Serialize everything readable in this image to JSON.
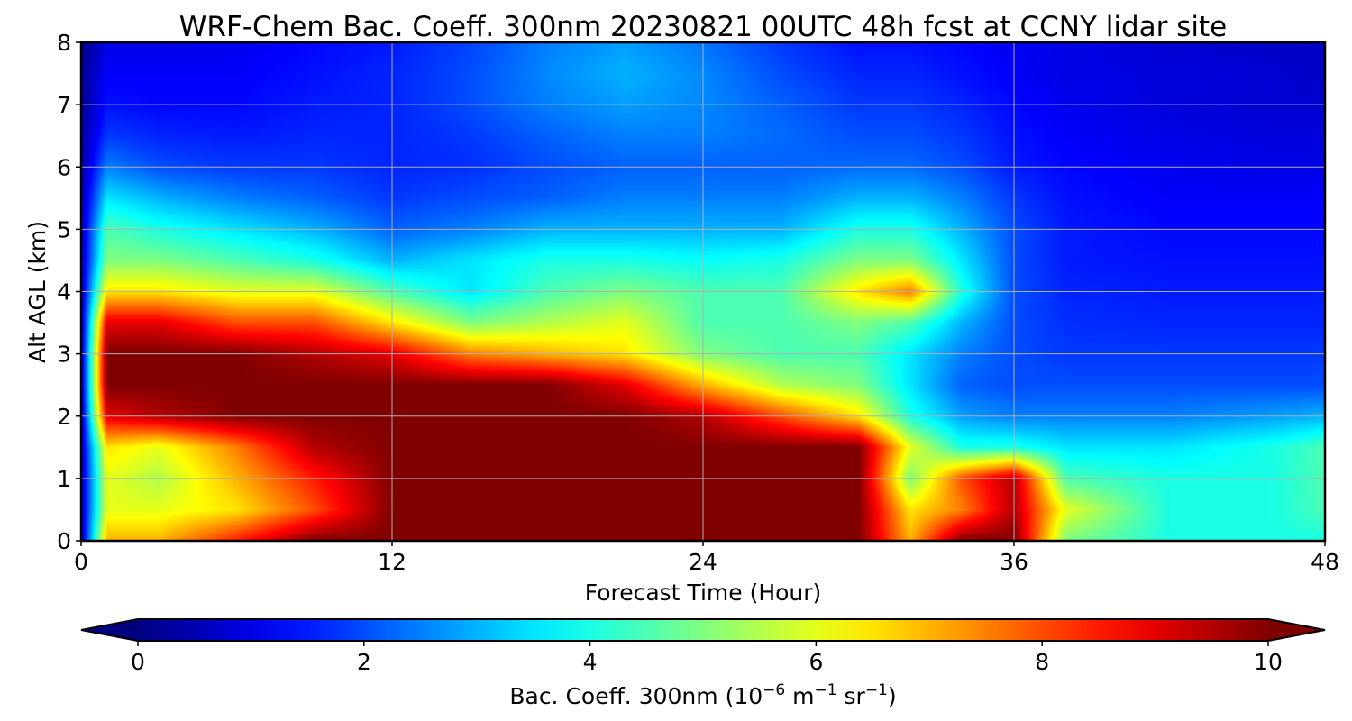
{
  "chart_data": {
    "type": "heatmap",
    "title": "WRF-Chem Bac. Coeff. 300nm  20230821 00UTC 48h fcst at CCNY lidar site",
    "xlabel": "Forecast Time (Hour)",
    "ylabel": "Alt AGL (km)",
    "xlim": [
      0,
      48
    ],
    "ylim": [
      0,
      8
    ],
    "xticks": [
      0,
      12,
      24,
      36,
      48
    ],
    "yticks": [
      0,
      1,
      2,
      3,
      4,
      5,
      6,
      7,
      8
    ],
    "grid": true,
    "colormap": "jet",
    "colorbar": {
      "orientation": "horizontal",
      "placement": "bottom",
      "range": [
        0,
        10
      ],
      "extend": "both",
      "ticks": [
        0,
        2,
        4,
        6,
        8,
        10
      ],
      "label_prefix": "Bac. Coeff. 300nm  (10",
      "label_exp1": "−6",
      "label_mid": " m",
      "label_exp2": "−1",
      "label_mid2": " sr",
      "label_exp3": "−1",
      "label_suffix": ")"
    },
    "x": [
      0,
      1,
      3,
      6,
      9,
      12,
      15,
      18,
      21,
      24,
      27,
      30,
      32,
      34,
      36,
      38,
      42,
      46,
      48
    ],
    "y": [
      0,
      0.5,
      1,
      1.5,
      2,
      2.5,
      3,
      3.5,
      4,
      4.5,
      5,
      5.5,
      6,
      6.5,
      7,
      7.5,
      8
    ],
    "z": [
      [
        0.5,
        7,
        7,
        8.5,
        10,
        10,
        10,
        10,
        10,
        10,
        10,
        10,
        7,
        10,
        10,
        5,
        4,
        4,
        4
      ],
      [
        0.5,
        6,
        6,
        6.5,
        8,
        10,
        10,
        10,
        10,
        10,
        10,
        10,
        6.5,
        7.5,
        9.5,
        6,
        4,
        4,
        4.5
      ],
      [
        0.5,
        6,
        5.5,
        7,
        8.5,
        10,
        10,
        10,
        10,
        10,
        10,
        10,
        5,
        8,
        9.5,
        4.5,
        4,
        4,
        4.5
      ],
      [
        0.5,
        6.5,
        6,
        7.5,
        9.5,
        10,
        10,
        10,
        10,
        10,
        10,
        10,
        6,
        4,
        4,
        3.5,
        3.5,
        4,
        4.5
      ],
      [
        0.5,
        9,
        9.5,
        10,
        10,
        10,
        10,
        10,
        10,
        9.5,
        8,
        6.5,
        4,
        2.8,
        2.5,
        2.5,
        2.5,
        2.8,
        3
      ],
      [
        0.5,
        10,
        10,
        10,
        10,
        10,
        10,
        10,
        9,
        7,
        5.5,
        5,
        3.5,
        2.2,
        2,
        2,
        2,
        2,
        2
      ],
      [
        0.5,
        10,
        10,
        10,
        9.5,
        9,
        7.5,
        7,
        6.5,
        5,
        4.5,
        4.5,
        3.5,
        2.5,
        2,
        1.8,
        1.8,
        1.8,
        1.8
      ],
      [
        0.5,
        9,
        9,
        8,
        8,
        6.5,
        5,
        5.5,
        6,
        4.5,
        4.5,
        5,
        4.5,
        3,
        2,
        1.7,
        1.6,
        1.6,
        1.6
      ],
      [
        0.5,
        6.5,
        6.5,
        6,
        6,
        4.5,
        3.5,
        4.5,
        5,
        4.5,
        4.5,
        6.5,
        7.5,
        4,
        2,
        1.6,
        1.5,
        1.5,
        1.5
      ],
      [
        0.5,
        5,
        5,
        4.5,
        4,
        3,
        3.5,
        4,
        4,
        3.8,
        4,
        5,
        5,
        3.5,
        2,
        1.5,
        1.4,
        1.4,
        1.4
      ],
      [
        0.5,
        4.5,
        4,
        3.5,
        3,
        2.2,
        2.5,
        3,
        3,
        3,
        3,
        4,
        4,
        3,
        2,
        1.5,
        1.3,
        1.3,
        1.3
      ],
      [
        0.4,
        3.5,
        3,
        2.5,
        2.2,
        1.8,
        2,
        2.2,
        2.5,
        2.5,
        2.5,
        3,
        3,
        2.5,
        1.8,
        1.4,
        1.2,
        1.2,
        1.2
      ],
      [
        0.3,
        2.5,
        2,
        1.8,
        1.8,
        1.6,
        1.7,
        2,
        2.2,
        2.2,
        2.2,
        2.3,
        2.3,
        2,
        1.5,
        1.3,
        1.1,
        1,
        1
      ],
      [
        0.3,
        1.8,
        1.6,
        1.5,
        1.6,
        1.6,
        1.8,
        2.2,
        2.5,
        2.5,
        2.3,
        2,
        2,
        1.8,
        1.4,
        1.2,
        1,
        0.9,
        0.9
      ],
      [
        0.2,
        1.4,
        1.3,
        1.3,
        1.5,
        1.6,
        2,
        2.5,
        2.8,
        2.6,
        2.2,
        1.8,
        1.8,
        1.6,
        1.3,
        1.1,
        0.9,
        0.8,
        0.8
      ],
      [
        0.2,
        1.2,
        1.2,
        1.2,
        1.4,
        1.6,
        2,
        2.6,
        3,
        2.6,
        2,
        1.6,
        1.6,
        1.4,
        1.2,
        1,
        0.9,
        0.8,
        0.7
      ],
      [
        0.1,
        1,
        1,
        1.1,
        1.3,
        1.5,
        1.9,
        2.5,
        2.8,
        2.4,
        1.8,
        1.4,
        1.4,
        1.3,
        1.1,
        1,
        0.8,
        0.7,
        0.7
      ]
    ]
  }
}
